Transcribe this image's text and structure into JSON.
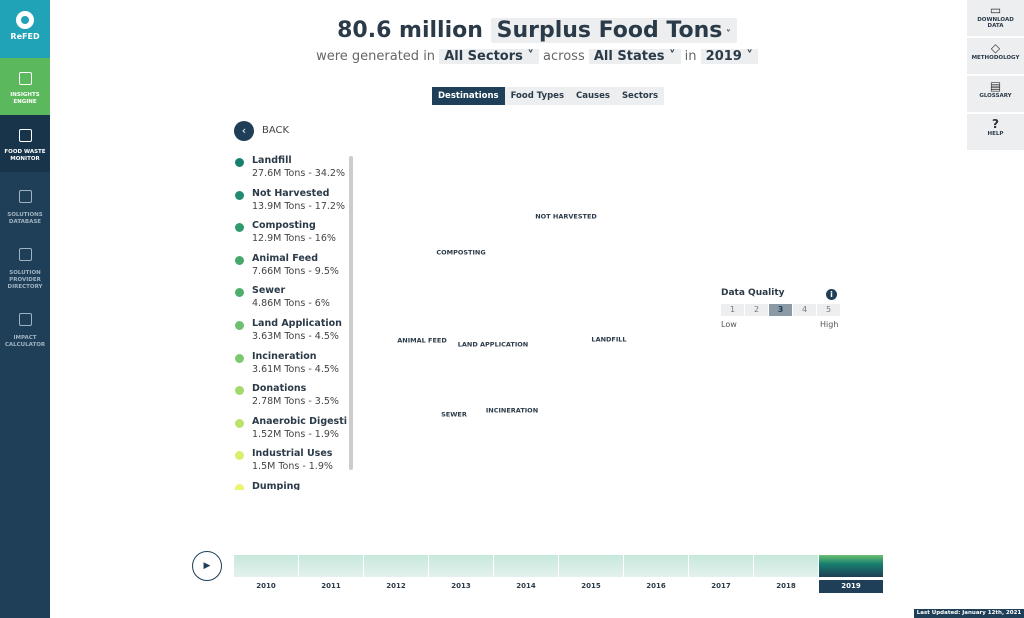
{
  "sidebar": {
    "logo": "ReFED",
    "items": [
      "INSIGHTS ENGINE",
      "FOOD WASTE MONITOR",
      "SOLUTIONS DATABASE",
      "SOLUTION PROVIDER DIRECTORY",
      "IMPACT CALCULATOR"
    ]
  },
  "header": {
    "amount": "80.6 million",
    "metric": "Surplus Food Tons",
    "text1": "were generated in",
    "sector": "All Sectors",
    "text2": "across",
    "state": "All States",
    "text3": "in",
    "year": "2019"
  },
  "tabs": [
    "Destinations",
    "Food Types",
    "Causes",
    "Sectors"
  ],
  "back": "BACK",
  "legend": [
    {
      "name": "Landfill",
      "detail": "27.6M Tons - 34.2%"
    },
    {
      "name": "Not Harvested",
      "detail": "13.9M Tons - 17.2%"
    },
    {
      "name": "Composting",
      "detail": "12.9M Tons - 16%"
    },
    {
      "name": "Animal Feed",
      "detail": "7.66M Tons - 9.5%"
    },
    {
      "name": "Sewer",
      "detail": "4.86M Tons - 6%"
    },
    {
      "name": "Land Application",
      "detail": "3.63M Tons - 4.5%"
    },
    {
      "name": "Incineration",
      "detail": "3.61M Tons - 4.5%"
    },
    {
      "name": "Donations",
      "detail": "2.78M Tons - 3.5%"
    },
    {
      "name": "Anaerobic Digestion",
      "detail": "1.52M Tons - 1.9%"
    },
    {
      "name": "Industrial Uses",
      "detail": "1.5M Tons - 1.9%"
    },
    {
      "name": "Dumping"
    }
  ],
  "treemap_labels": [
    "NOT HARVESTED",
    "COMPOSTING",
    "ANIMAL FEED",
    "LAND APPLICATION",
    "LANDFILL",
    "SEWER",
    "INCINERATION"
  ],
  "data_quality": {
    "title": "Data Quality",
    "info": "i",
    "levels": [
      "1",
      "2",
      "3",
      "4",
      "5"
    ],
    "low": "Low",
    "high": "High"
  },
  "timeline": [
    "2010",
    "2011",
    "2012",
    "2013",
    "2014",
    "2015",
    "2016",
    "2017",
    "2018",
    "2019"
  ],
  "tools": [
    "DOWNLOAD DATA",
    "METHODOLOGY",
    "GLOSSARY",
    "HELP"
  ],
  "footer": "Last Updated: January 12th, 2021"
}
